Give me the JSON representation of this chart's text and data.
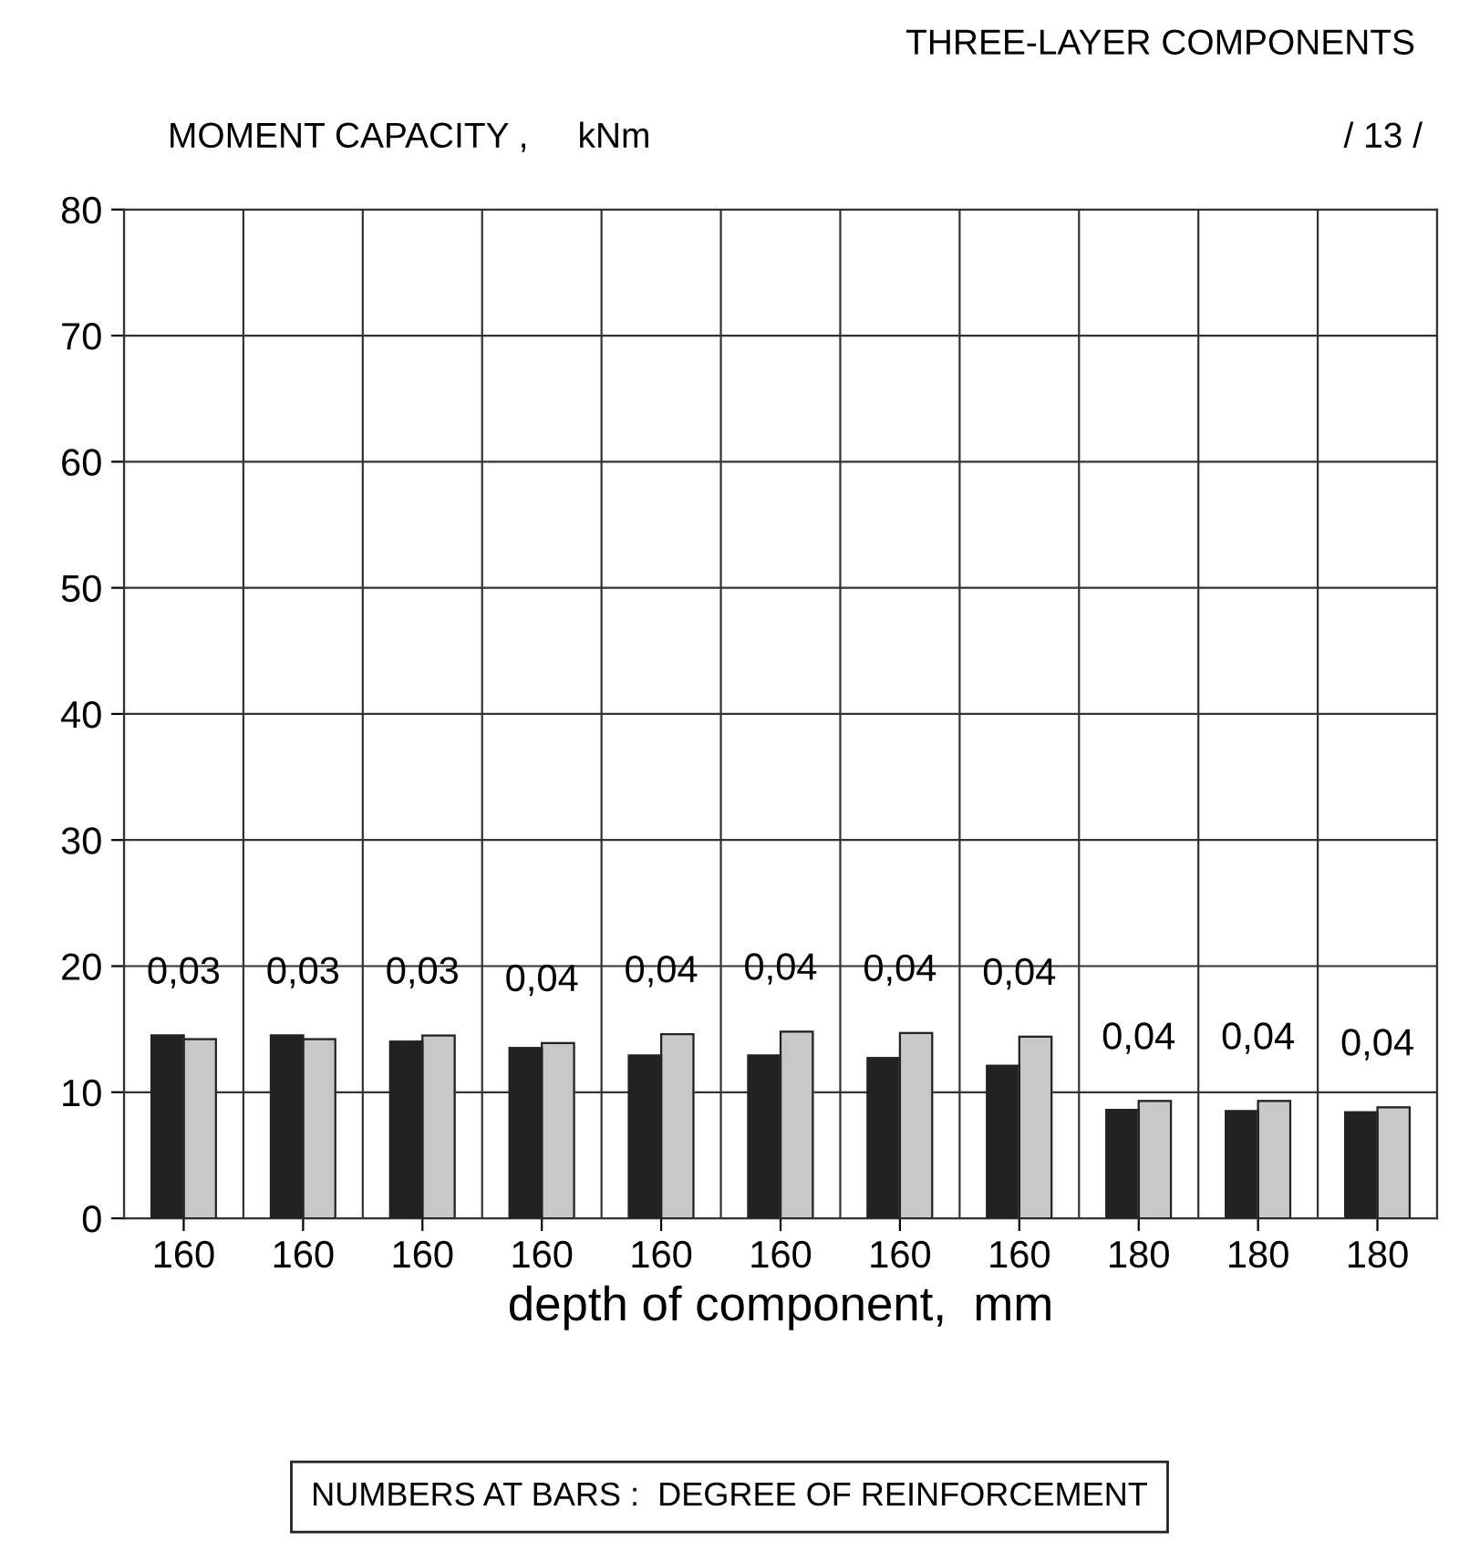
{
  "chart_data": {
    "type": "bar",
    "title": "THREE-LAYER COMPONENTS",
    "ylabel": "MOMENT CAPACITY ,     kNm",
    "xlabel": "depth of component,  mm",
    "categories": [
      "160",
      "160",
      "160",
      "160",
      "160",
      "160",
      "160",
      "160",
      "180",
      "180",
      "180"
    ],
    "series": [
      {
        "color": "#222222",
        "values": [
          14.5,
          14.5,
          14.0,
          13.5,
          12.9,
          12.9,
          12.7,
          12.1,
          8.6,
          8.5,
          8.4
        ]
      },
      {
        "color": "#c8c8c8",
        "values": [
          14.2,
          14.2,
          14.5,
          13.9,
          14.6,
          14.8,
          14.7,
          14.4,
          9.3,
          9.3,
          8.8
        ]
      }
    ],
    "annotations": [
      "0,03",
      "0,03",
      "0,03",
      "0,04",
      "0,04",
      "0,04",
      "0,04",
      "0,04",
      "0,04",
      "0,04",
      "0,04",
      "/ 13 /",
      "NUMBERS AT BARS :  DEGREE OF REINFORCEMENT"
    ],
    "ylim": [
      0,
      80
    ],
    "yticks": [
      0,
      10,
      20,
      30,
      40,
      50,
      60,
      70,
      80
    ],
    "grid": true
  }
}
